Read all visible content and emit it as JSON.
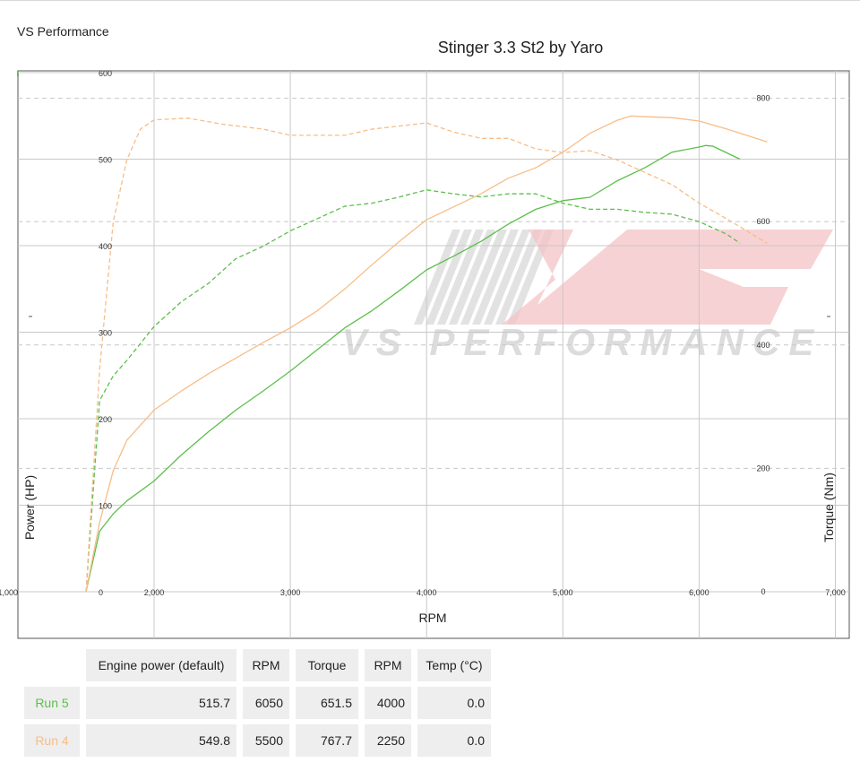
{
  "brand": "VS Performance",
  "chart_data": {
    "type": "line",
    "title": "Stinger 3.3 St2 by Yaro",
    "xlabel": "RPM",
    "ylabel_left": "Power (HP)",
    "ylabel_right": "Torque (Nm)",
    "xlim": [
      1000,
      7000
    ],
    "ylim_left": [
      0,
      600
    ],
    "ylim_right": [
      0,
      840
    ],
    "x_ticks": [
      {
        "value": 1000,
        "label": "1,000"
      },
      {
        "value": 2000,
        "label": "2,000"
      },
      {
        "value": 3000,
        "label": "3,000"
      },
      {
        "value": 4000,
        "label": "4,000"
      },
      {
        "value": 5000,
        "label": "5,000"
      },
      {
        "value": 6000,
        "label": "6,000"
      },
      {
        "value": 7000,
        "label": "7,000"
      }
    ],
    "y_ticks_left": [
      "0",
      "100",
      "200",
      "300",
      "400",
      "500",
      "600"
    ],
    "y_ticks_right": [
      "0",
      "200",
      "400",
      "600",
      "800"
    ],
    "grid": true,
    "watermark": "VS PERFORMANCE",
    "series": [
      {
        "name": "Run 5",
        "measure": "power",
        "axis": "left",
        "style": "solid",
        "color": "#5cbf4b",
        "x": [
          1500,
          1600,
          1700,
          1800,
          2000,
          2200,
          2400,
          2600,
          2800,
          3000,
          3200,
          3400,
          3600,
          3800,
          4000,
          4200,
          4400,
          4600,
          4800,
          5000,
          5200,
          5400,
          5600,
          5800,
          6000,
          6050,
          6100,
          6300
        ],
        "y": [
          0,
          70,
          90,
          105,
          128,
          158,
          185,
          210,
          232,
          255,
          280,
          305,
          325,
          348,
          372,
          388,
          405,
          425,
          442,
          452,
          456,
          475,
          490,
          508,
          514,
          515.7,
          515,
          500
        ]
      },
      {
        "name": "Run 5",
        "measure": "torque",
        "axis": "right",
        "style": "dashed",
        "color": "#5cbf4b",
        "x": [
          1500,
          1600,
          1700,
          1800,
          2000,
          2200,
          2400,
          2600,
          2800,
          3000,
          3200,
          3400,
          3600,
          3800,
          4000,
          4200,
          4400,
          4600,
          4800,
          5000,
          5200,
          5400,
          5600,
          5800,
          6000,
          6200,
          6300
        ],
        "y": [
          0,
          310,
          350,
          375,
          430,
          470,
          500,
          540,
          560,
          585,
          605,
          625,
          630,
          640,
          651.5,
          645,
          640,
          645,
          645,
          630,
          620,
          620,
          615,
          612,
          600,
          580,
          565
        ]
      },
      {
        "name": "Run 4",
        "measure": "power",
        "axis": "left",
        "style": "solid",
        "color": "#f7bd87",
        "x": [
          1500,
          1600,
          1700,
          1800,
          2000,
          2200,
          2400,
          2600,
          2800,
          3000,
          3200,
          3400,
          3600,
          3800,
          4000,
          4200,
          4400,
          4600,
          4800,
          5000,
          5200,
          5400,
          5500,
          5600,
          5800,
          6000,
          6200,
          6500
        ],
        "y": [
          0,
          80,
          140,
          175,
          210,
          232,
          252,
          270,
          288,
          305,
          325,
          350,
          378,
          405,
          430,
          445,
          460,
          478,
          490,
          508,
          530,
          545,
          549.8,
          549,
          548,
          544,
          535,
          520
        ]
      },
      {
        "name": "Run 4",
        "measure": "torque",
        "axis": "right",
        "style": "dashed",
        "color": "#f7bd87",
        "x": [
          1500,
          1600,
          1700,
          1800,
          1900,
          2000,
          2250,
          2500,
          2800,
          3000,
          3200,
          3400,
          3600,
          3800,
          4000,
          4200,
          4400,
          4600,
          4800,
          5000,
          5200,
          5400,
          5600,
          5800,
          6000,
          6200,
          6500
        ],
        "y": [
          0,
          360,
          600,
          700,
          750,
          765,
          767.7,
          758,
          750,
          740,
          740,
          740,
          750,
          755,
          760,
          745,
          735,
          735,
          718,
          712,
          715,
          700,
          680,
          660,
          630,
          605,
          565
        ]
      }
    ]
  },
  "table": {
    "headers": [
      "Engine power (default)",
      "RPM",
      "Torque",
      "RPM",
      "Temp (°C)"
    ],
    "rows": [
      {
        "label": "Run 5",
        "power": "515.7",
        "power_rpm": "6050",
        "torque": "651.5",
        "torque_rpm": "4000",
        "temp": "0.0",
        "color": "#5cbf4b"
      },
      {
        "label": "Run 4",
        "power": "549.8",
        "power_rpm": "5500",
        "torque": "767.7",
        "torque_rpm": "2250",
        "temp": "0.0",
        "color": "#f7bd87"
      }
    ]
  }
}
